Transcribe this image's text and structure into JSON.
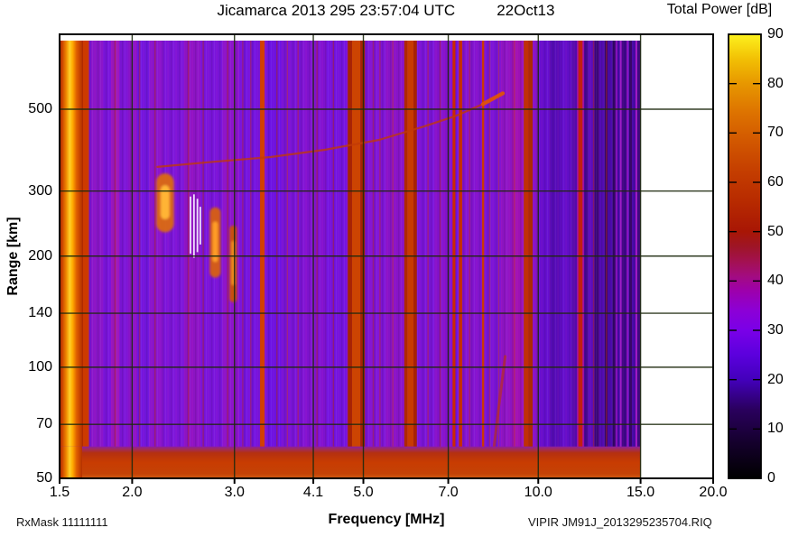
{
  "footer": {
    "rx_mask": "RxMask 11111111",
    "file_id": "VIPIR  JM91J_2013295235704.RIQ"
  },
  "chart_data": {
    "type": "heatmap",
    "title": "Jicamarca 2013 295 23:57:04 UTC",
    "date_label": "22Oct13",
    "xlabel": "Frequency [MHz]",
    "ylabel": "Range [km]",
    "x_scale": "log",
    "y_scale": "log",
    "x_range_mhz": [
      1.5,
      20.0
    ],
    "y_range_km": [
      50,
      798
    ],
    "sweep_max_mhz": 15.0,
    "x_ticks": [
      "1.5",
      "2.0",
      "3.0",
      "4.1",
      "5.0",
      "7.0",
      "10.0",
      "15.0",
      "20.0"
    ],
    "x_gridlines_mhz": [
      2.0,
      3.0,
      4.1,
      5.0,
      7.0,
      10.0,
      15.0
    ],
    "y_ticks": [
      "500",
      "300",
      "200",
      "140",
      "100",
      "70",
      "50"
    ],
    "y_gridlines_km": [
      500,
      300,
      200,
      140,
      100,
      70
    ],
    "grid_color": "#1e2a0e",
    "base_color": "#7d16d8",
    "colorbar": {
      "title": "Total Power [dB]",
      "min": 0,
      "max": 90,
      "tick_step": 10,
      "ticks": [
        90,
        80,
        70,
        60,
        50,
        40,
        30,
        20,
        10,
        0
      ],
      "stops": [
        {
          "v": 0,
          "c": "#000000"
        },
        {
          "v": 7,
          "c": "#14002b"
        },
        {
          "v": 14,
          "c": "#2a005e"
        },
        {
          "v": 20,
          "c": "#4300bb"
        },
        {
          "v": 25,
          "c": "#5b00dd"
        },
        {
          "v": 30,
          "c": "#7a00e8"
        },
        {
          "v": 34,
          "c": "#8c00d6"
        },
        {
          "v": 38,
          "c": "#9d00ac"
        },
        {
          "v": 41,
          "c": "#a30c80"
        },
        {
          "v": 44,
          "c": "#a31150"
        },
        {
          "v": 47,
          "c": "#9e1526"
        },
        {
          "v": 50,
          "c": "#a81605"
        },
        {
          "v": 56,
          "c": "#b72a00"
        },
        {
          "v": 62,
          "c": "#c43d00"
        },
        {
          "v": 68,
          "c": "#d15600"
        },
        {
          "v": 74,
          "c": "#dd7200"
        },
        {
          "v": 80,
          "c": "#e79700"
        },
        {
          "v": 85,
          "c": "#f2c004"
        },
        {
          "v": 90,
          "c": "#fdf21e"
        }
      ]
    },
    "cal_stripe": {
      "f0": 1.5,
      "f1": 1.56,
      "stops": [
        {
          "p": 0,
          "c": "#a62800"
        },
        {
          "p": 0.12,
          "c": "#cc4400"
        },
        {
          "p": 0.3,
          "c": "#f08a00"
        },
        {
          "p": 0.45,
          "c": "#ffd028"
        },
        {
          "p": 0.58,
          "c": "#ffaa00"
        },
        {
          "p": 0.75,
          "c": "#e06000"
        },
        {
          "p": 1,
          "c": "#b43000"
        }
      ]
    },
    "texture_bands": [
      [
        1.7,
        1.78,
        "#8a16ca"
      ],
      [
        1.78,
        1.84,
        "#7a14dc"
      ],
      [
        1.84,
        1.9,
        "#9c16c0"
      ],
      [
        1.9,
        1.97,
        "#7c15d8"
      ],
      [
        1.97,
        2.04,
        "#8d14cc"
      ],
      [
        2.04,
        2.14,
        "#7316e0"
      ],
      [
        2.14,
        2.26,
        "#8a15d0"
      ],
      [
        2.26,
        2.46,
        "#7d15da"
      ],
      [
        2.46,
        2.62,
        "#8f14c8"
      ],
      [
        2.62,
        2.86,
        "#7a15dc"
      ],
      [
        2.86,
        3.06,
        "#8c14ce"
      ],
      [
        3.06,
        3.3,
        "#7514e0"
      ],
      [
        3.42,
        3.62,
        "#6d13e4"
      ],
      [
        3.62,
        3.92,
        "#7a14da"
      ],
      [
        3.92,
        4.32,
        "#8213d4"
      ],
      [
        4.32,
        4.68,
        "#7414e0"
      ],
      [
        5.04,
        5.46,
        "#7f15d8"
      ],
      [
        5.46,
        5.86,
        "#8a14cc"
      ],
      [
        6.22,
        6.62,
        "#7b15da"
      ],
      [
        6.62,
        7.1,
        "#8513d0"
      ],
      [
        7.1,
        7.42,
        "#7514de"
      ],
      [
        7.42,
        7.98,
        "#8414d2"
      ],
      [
        8.08,
        8.62,
        "#7a15da"
      ],
      [
        8.62,
        9.0,
        "#9014c6"
      ],
      [
        9.0,
        9.42,
        "#a013b8"
      ],
      [
        9.8,
        10.0,
        "#8a14cc"
      ],
      [
        10.0,
        10.45,
        "#660fd0"
      ],
      [
        10.45,
        10.9,
        "#570cb8"
      ],
      [
        10.9,
        11.4,
        "#640ecc"
      ],
      [
        11.4,
        11.66,
        "#560bb0"
      ],
      [
        11.98,
        12.2,
        "#4a0896"
      ],
      [
        12.2,
        12.5,
        "#5c0dc0"
      ],
      [
        12.5,
        12.72,
        "#3a0678"
      ],
      [
        12.72,
        13.0,
        "#540cb6"
      ],
      [
        13.0,
        13.18,
        "#330570"
      ],
      [
        13.18,
        13.42,
        "#4e0bb0"
      ],
      [
        13.42,
        13.58,
        "#2e0464"
      ],
      [
        13.58,
        13.82,
        "#480aa8"
      ],
      [
        13.82,
        13.92,
        "#9a14c0"
      ],
      [
        13.92,
        14.18,
        "#3c0788"
      ],
      [
        14.18,
        14.34,
        "#540cb4"
      ],
      [
        14.34,
        14.5,
        "#300468"
      ],
      [
        14.5,
        14.7,
        "#4a0aac"
      ],
      [
        14.7,
        14.8,
        "#a816c4"
      ],
      [
        14.8,
        15.0,
        "#3a0680"
      ]
    ],
    "rfi_stripes": [
      [
        1.645,
        1.685,
        "#cc3a00"
      ],
      [
        3.32,
        3.38,
        "#d24000"
      ],
      [
        4.7,
        4.78,
        "#a82400"
      ],
      [
        4.78,
        4.94,
        "#cc4402"
      ],
      [
        4.94,
        5.03,
        "#a62400"
      ],
      [
        5.88,
        5.95,
        "#b02800"
      ],
      [
        5.95,
        6.1,
        "#c83a02"
      ],
      [
        6.1,
        6.18,
        "#a82400"
      ],
      [
        7.12,
        7.2,
        "#cc2a02"
      ],
      [
        7.3,
        7.4,
        "#c62e04"
      ],
      [
        8.0,
        8.07,
        "#cc3804"
      ],
      [
        9.44,
        9.62,
        "#c03006"
      ],
      [
        9.62,
        9.78,
        "#ae2a04"
      ],
      [
        11.66,
        11.72,
        "#a812a8"
      ],
      [
        11.72,
        11.92,
        "#c22010"
      ],
      [
        11.92,
        11.98,
        "#aa10a0"
      ]
    ],
    "faint_lines": {
      "mhz": [
        1.87,
        2.06,
        2.19,
        2.5,
        2.65,
        2.92,
        3.1,
        3.2,
        3.55,
        3.7,
        3.86,
        4.16,
        4.44,
        5.2,
        5.34,
        5.62,
        6.46,
        6.78,
        7.62,
        8.25,
        8.55,
        9.1,
        12.45,
        13.1
      ],
      "color": "#c82a06",
      "opacity": 0.4
    },
    "magenta_lines": {
      "mhz": [
        13.64,
        14.24
      ],
      "color": "#a816c8",
      "opacity": 0.8
    },
    "echoes": {
      "blob1": {
        "f0": 2.2,
        "f1": 2.36,
        "r0": 232,
        "r1": 335,
        "outer": "#dd6a0c",
        "core": "#ffb434"
      },
      "white_lines": [
        {
          "f": 2.52,
          "r0": 203,
          "r1": 290
        },
        {
          "f": 2.555,
          "r0": 198,
          "r1": 294
        },
        {
          "f": 2.59,
          "r0": 205,
          "r1": 286
        },
        {
          "f": 2.62,
          "r0": 215,
          "r1": 272
        }
      ],
      "white_line_color": "#f2e9ff",
      "blob2": {
        "f0": 2.72,
        "f1": 2.84,
        "r0": 175,
        "r1": 271,
        "outer": "#d86008",
        "core": "#ff9c28"
      },
      "blob3": {
        "f0": 2.94,
        "f1": 3.03,
        "r0": 150,
        "r1": 242,
        "outer": "#cc5406",
        "core": "#f08c1c"
      },
      "oblique_trace": {
        "points": [
          [
            2.21,
            349
          ],
          [
            2.7,
            359
          ],
          [
            3.46,
            371
          ],
          [
            4.29,
            388
          ],
          [
            5.32,
            413
          ],
          [
            6.36,
            449
          ],
          [
            7.22,
            480
          ],
          [
            8.03,
            516
          ],
          [
            8.69,
            552
          ]
        ],
        "color": "#c23a08",
        "bright_tail": {
          "points": [
            [
              8.03,
              516
            ],
            [
              8.69,
              552
            ]
          ],
          "color": "#e0520c"
        }
      },
      "descending_streak": {
        "points": [
          [
            8.77,
            107
          ],
          [
            8.55,
            78
          ],
          [
            8.35,
            57
          ]
        ],
        "color": "#c13207"
      }
    },
    "ground_clutter": {
      "r0": 50,
      "r1": 61,
      "stops": [
        {
          "p": 0,
          "c": "#8c1f9e"
        },
        {
          "p": 0.08,
          "c": "#a02a60"
        },
        {
          "p": 0.2,
          "c": "#b43010"
        },
        {
          "p": 0.5,
          "c": "#c83c02"
        },
        {
          "p": 0.85,
          "c": "#c44206"
        },
        {
          "p": 0.96,
          "c": "#cc5410"
        },
        {
          "p": 1,
          "c": "#e2771c"
        }
      ]
    }
  }
}
